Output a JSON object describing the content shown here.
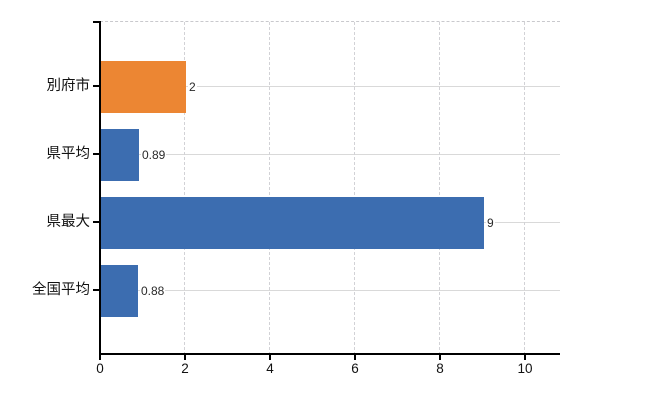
{
  "chart_data": {
    "type": "bar",
    "orientation": "horizontal",
    "title": "",
    "xlabel": "",
    "ylabel": "",
    "categories": [
      "別府市",
      "県平均",
      "県最大",
      "全国平均"
    ],
    "values": [
      2,
      0.89,
      9,
      0.88
    ],
    "value_labels": [
      "2",
      "0.89",
      "9",
      "0.88"
    ],
    "bar_colors": [
      "#EC8633",
      "#3C6DB0",
      "#3C6DB0",
      "#3C6DB0"
    ],
    "x_tick_labels": [
      "0",
      "2",
      "4",
      "6",
      "8",
      "10"
    ],
    "x_tick_values": [
      0,
      2,
      4,
      6,
      8,
      10
    ],
    "xlim": [
      0,
      10.8
    ],
    "legend": "none",
    "grid": {
      "vertical_style": "dashed",
      "horizontal_style": "solid",
      "top_border_style": "dashed"
    }
  },
  "colors": {
    "highlight_bar": "#EC8633",
    "default_bar": "#3C6DB0",
    "gridline": "#D9D9D9",
    "axis": "#000000",
    "text": "#111111",
    "background": "#FFFFFF"
  }
}
